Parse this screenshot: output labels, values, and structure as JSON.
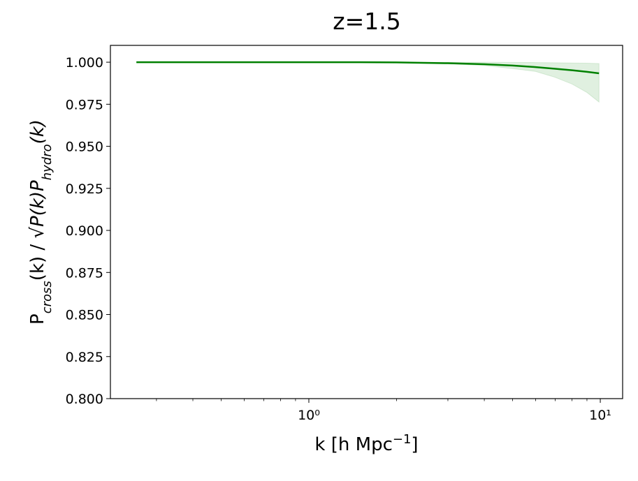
{
  "chart_data": {
    "type": "line",
    "title": "z=1.5",
    "xlabel": [
      "k [h Mpc",
      "−1",
      "]"
    ],
    "ylabel": [
      "P",
      "cross",
      "(k) / √",
      "P(k)P",
      "hydro",
      "(k)"
    ],
    "xscale": "log",
    "xlim": [
      0.2085,
      11.93
    ],
    "xticks": [
      {
        "value": 1,
        "label": "10⁰"
      },
      {
        "value": 10,
        "label": "10¹"
      }
    ],
    "xminorticks": [
      0.3,
      0.4,
      0.5,
      0.6,
      0.7,
      0.8,
      0.9,
      2,
      3,
      4,
      5,
      6,
      7,
      8,
      9
    ],
    "ylim": [
      0.8,
      1.01
    ],
    "yticks": [
      {
        "value": 0.8,
        "label": "0.800"
      },
      {
        "value": 0.825,
        "label": "0.825"
      },
      {
        "value": 0.85,
        "label": "0.850"
      },
      {
        "value": 0.875,
        "label": "0.875"
      },
      {
        "value": 0.9,
        "label": "0.900"
      },
      {
        "value": 0.925,
        "label": "0.925"
      },
      {
        "value": 0.95,
        "label": "0.950"
      },
      {
        "value": 0.975,
        "label": "0.975"
      },
      {
        "value": 1.0,
        "label": "1.000"
      }
    ],
    "series": [
      {
        "color": "#008000",
        "x": [
          0.256,
          0.5,
          1,
          1.5,
          2,
          3,
          4,
          5,
          6,
          7,
          8,
          9,
          9.9
        ],
        "values": [
          1.0,
          1.0,
          1.0,
          1.0,
          0.9999,
          0.9994,
          0.9988,
          0.998,
          0.9971,
          0.9961,
          0.9952,
          0.9943,
          0.9934
        ],
        "lower": [
          1.0,
          1.0,
          1.0,
          0.9999,
          0.9998,
          0.999,
          0.998,
          0.9962,
          0.9945,
          0.991,
          0.987,
          0.982,
          0.9763
        ],
        "upper": [
          1.0,
          1.0,
          1.0,
          1.0,
          1.0,
          1.0,
          1.0,
          0.9999,
          0.9998,
          0.9997,
          0.9995,
          0.9994,
          0.9992
        ]
      }
    ]
  }
}
